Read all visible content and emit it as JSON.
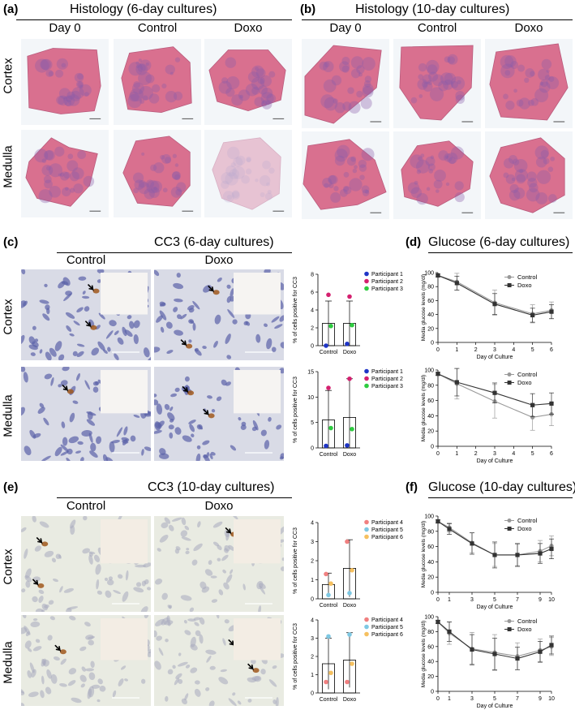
{
  "panels": {
    "a": {
      "label": "(a)",
      "title": "Histology (6-day cultures)",
      "cols": [
        "Day 0",
        "Control",
        "Doxo"
      ],
      "rows": [
        "Cortex",
        "Medulla"
      ]
    },
    "b": {
      "label": "(b)",
      "title": "Histology (10-day cultures)",
      "cols": [
        "Day 0",
        "Control",
        "Doxo"
      ]
    },
    "c": {
      "label": "(c)",
      "title": "CC3 (6-day cultures)",
      "cols": [
        "Control",
        "Doxo"
      ],
      "rows": [
        "Cortex",
        "Medulla"
      ]
    },
    "d": {
      "label": "(d)",
      "title": "Glucose (6-day cultures)"
    },
    "e": {
      "label": "(e)",
      "title": "CC3 (10-day cultures)",
      "cols": [
        "Control",
        "Doxo"
      ],
      "rows": [
        "Cortex",
        "Medulla"
      ]
    },
    "f": {
      "label": "(f)",
      "title": "Glucose (10-day cultures)"
    }
  },
  "colors": {
    "he_pink": "#d9708f",
    "he_purple": "#8a5ca8",
    "ihc_blue": "#5b63a8",
    "ihc_brown": "#a0581c",
    "p1": "#1f35c7",
    "p2": "#d4206f",
    "p3": "#2ecc40",
    "p4": "#f08080",
    "p5": "#7ec8e3",
    "p6": "#f5c060"
  },
  "chart_data": [
    {
      "id": "c_cortex",
      "type": "bar",
      "ylabel": "% of cells positive for CC3",
      "categories": [
        "Control",
        "Doxo"
      ],
      "ylim": [
        0,
        8
      ],
      "yticks": [
        0,
        2,
        4,
        6,
        8
      ],
      "bars": [
        2.5,
        2.5
      ],
      "err": [
        [
          0,
          5
        ],
        [
          0,
          5
        ]
      ],
      "points": [
        {
          "name": "Participant 1",
          "color": "#1f35c7",
          "values": [
            0,
            0.2
          ]
        },
        {
          "name": "Participant 2",
          "color": "#d4206f",
          "values": [
            5.7,
            5.5
          ]
        },
        {
          "name": "Participant 3",
          "color": "#2ecc40",
          "values": [
            2.2,
            2.3
          ]
        }
      ]
    },
    {
      "id": "c_medulla",
      "type": "bar",
      "ylabel": "% of cells positive for CC3",
      "categories": [
        "Control",
        "Doxo"
      ],
      "ylim": [
        0,
        15
      ],
      "yticks": [
        0,
        5,
        10,
        15
      ],
      "bars": [
        5.5,
        6.0
      ],
      "err": [
        [
          0,
          11.3
        ],
        [
          0,
          13.6
        ]
      ],
      "points": [
        {
          "name": "Participant 1",
          "color": "#1f35c7",
          "values": [
            0.4,
            0.5
          ]
        },
        {
          "name": "Participant 2",
          "color": "#d4206f",
          "values": [
            11.8,
            13.6
          ]
        },
        {
          "name": "Participant 3",
          "color": "#2ecc40",
          "values": [
            3.9,
            3.7
          ]
        }
      ]
    },
    {
      "id": "e_cortex",
      "type": "bar",
      "ylabel": "% of cells positive for CC3",
      "categories": [
        "Control",
        "Doxo"
      ],
      "ylim": [
        0,
        4
      ],
      "yticks": [
        0,
        1,
        2,
        3,
        4
      ],
      "bars": [
        0.75,
        1.6
      ],
      "err": [
        [
          0.15,
          1.35
        ],
        [
          0.1,
          3.1
        ]
      ],
      "points": [
        {
          "name": "Participant 4",
          "color": "#f08080",
          "values": [
            1.3,
            3.0
          ]
        },
        {
          "name": "Participant 5",
          "color": "#7ec8e3",
          "values": [
            0.2,
            0.3
          ]
        },
        {
          "name": "Participant 6",
          "color": "#f5c060",
          "values": [
            0.8,
            1.5
          ]
        }
      ]
    },
    {
      "id": "e_medulla",
      "type": "bar",
      "ylabel": "% of cells positive for CC3",
      "categories": [
        "Control",
        "Doxo"
      ],
      "ylim": [
        0,
        4
      ],
      "yticks": [
        0,
        1,
        2,
        3,
        4
      ],
      "bars": [
        1.6,
        1.8
      ],
      "err": [
        [
          0.2,
          3.0
        ],
        [
          0.3,
          3.3
        ]
      ],
      "points": [
        {
          "name": "Participant 4",
          "color": "#f08080",
          "values": [
            0.6,
            0.6
          ]
        },
        {
          "name": "Participant 5",
          "color": "#7ec8e3",
          "values": [
            3.1,
            3.2
          ]
        },
        {
          "name": "Participant 6",
          "color": "#f5c060",
          "values": [
            1.1,
            1.6
          ]
        }
      ]
    },
    {
      "id": "d_cortex",
      "type": "line",
      "ylabel": "Media glucose levels (mg/dl)",
      "xlabel": "Day of Culture",
      "xlim": [
        0,
        6
      ],
      "xticks": [
        0,
        1,
        2,
        3,
        4,
        5,
        6
      ],
      "ylim": [
        0,
        100
      ],
      "yticks": [
        0,
        20,
        40,
        60,
        80,
        100
      ],
      "series": [
        {
          "name": "Control",
          "color": "#999999",
          "marker": "circle",
          "x": [
            0,
            1,
            3,
            5,
            6
          ],
          "y": [
            96,
            87,
            57,
            41,
            46
          ],
          "err": [
            2,
            12,
            18,
            13,
            12
          ]
        },
        {
          "name": "Doxo",
          "color": "#333333",
          "marker": "square",
          "x": [
            0,
            1,
            3,
            5,
            6
          ],
          "y": [
            96,
            85,
            55,
            39,
            44
          ],
          "err": [
            2,
            10,
            15,
            10,
            10
          ]
        }
      ]
    },
    {
      "id": "d_medulla",
      "type": "line",
      "ylabel": "Media glucose levels (mg/dl)",
      "xlabel": "Day of Culture",
      "xlim": [
        0,
        6
      ],
      "xticks": [
        0,
        1,
        2,
        3,
        4,
        5,
        6
      ],
      "ylim": [
        0,
        100
      ],
      "yticks": [
        0,
        20,
        40,
        60,
        80,
        100
      ],
      "series": [
        {
          "name": "Control",
          "color": "#999999",
          "marker": "circle",
          "x": [
            0,
            1,
            3,
            5,
            6
          ],
          "y": [
            95,
            82,
            59,
            38,
            42
          ],
          "err": [
            2,
            20,
            22,
            17,
            15
          ]
        },
        {
          "name": "Doxo",
          "color": "#333333",
          "marker": "square",
          "x": [
            0,
            1,
            3,
            5,
            6
          ],
          "y": [
            95,
            84,
            70,
            54,
            56
          ],
          "err": [
            2,
            18,
            13,
            15,
            14
          ]
        }
      ]
    },
    {
      "id": "f_cortex",
      "type": "line",
      "ylabel": "Media glucose levels (mg/dl)",
      "xlabel": "Day of Culture",
      "xlim": [
        0,
        10
      ],
      "xticks": [
        0,
        1,
        3,
        5,
        7,
        9,
        10
      ],
      "ylim": [
        0,
        100
      ],
      "yticks": [
        0,
        20,
        40,
        60,
        80,
        100
      ],
      "series": [
        {
          "name": "Control",
          "color": "#999999",
          "marker": "circle",
          "x": [
            0,
            1,
            3,
            5,
            7,
            9,
            10
          ],
          "y": [
            93,
            85,
            65,
            49,
            49,
            54,
            61
          ],
          "err": [
            2,
            6,
            13,
            15,
            14,
            14,
            13
          ]
        },
        {
          "name": "Doxo",
          "color": "#333333",
          "marker": "square",
          "x": [
            0,
            1,
            3,
            5,
            7,
            9,
            10
          ],
          "y": [
            93,
            83,
            64,
            49,
            49,
            51,
            57
          ],
          "err": [
            2,
            7,
            14,
            17,
            15,
            13,
            13
          ]
        }
      ]
    },
    {
      "id": "f_medulla",
      "type": "line",
      "ylabel": "Media glucose levels (mg/dl)",
      "xlabel": "Day of Culture",
      "xlim": [
        0,
        10
      ],
      "xticks": [
        0,
        1,
        3,
        5,
        7,
        9,
        10
      ],
      "ylim": [
        0,
        100
      ],
      "yticks": [
        0,
        20,
        40,
        60,
        80,
        100
      ],
      "series": [
        {
          "name": "Control",
          "color": "#999999",
          "marker": "circle",
          "x": [
            0,
            1,
            3,
            5,
            7,
            9,
            10
          ],
          "y": [
            93,
            78,
            57,
            52,
            47,
            55,
            60
          ],
          "err": [
            2,
            15,
            22,
            24,
            18,
            15,
            12
          ]
        },
        {
          "name": "Doxo",
          "color": "#333333",
          "marker": "square",
          "x": [
            0,
            1,
            3,
            5,
            7,
            9,
            10
          ],
          "y": [
            93,
            80,
            56,
            50,
            44,
            53,
            62
          ],
          "err": [
            2,
            13,
            20,
            21,
            15,
            14,
            12
          ]
        }
      ]
    }
  ]
}
